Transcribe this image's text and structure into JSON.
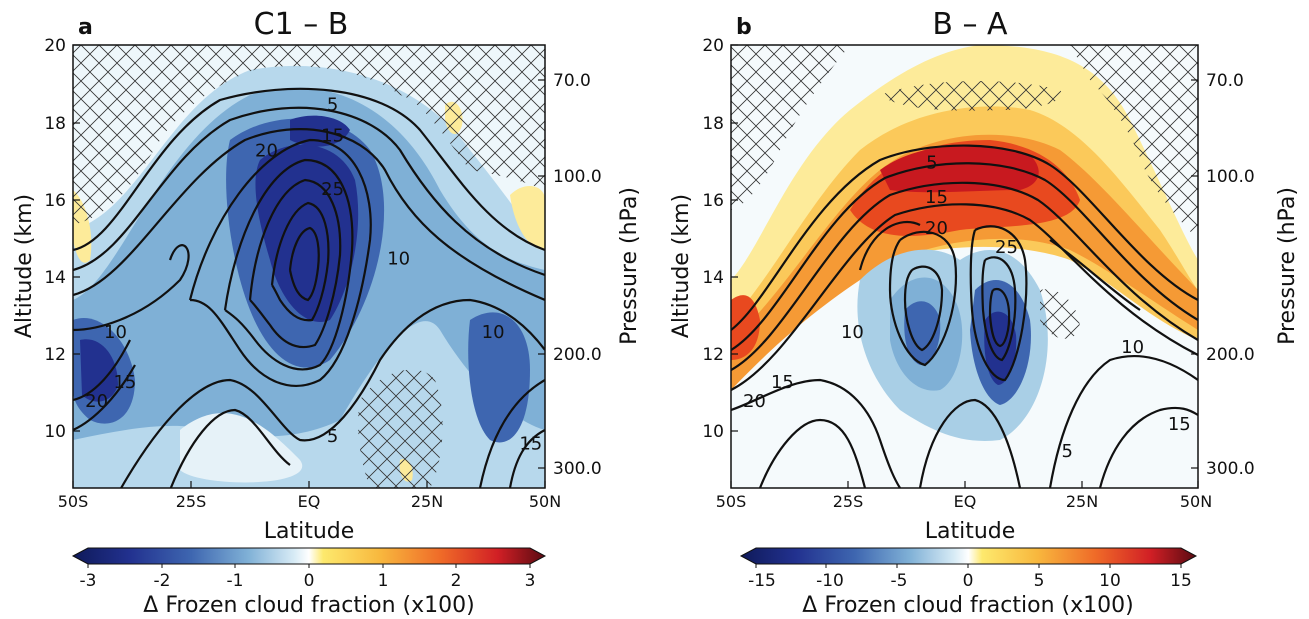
{
  "chart_data": [
    {
      "panel_letter": "a",
      "title": "C1 – B",
      "type": "heatmap",
      "xlabel": "Latitude",
      "ylabel": "Altitude (km)",
      "y2label": "Pressure (hPa)",
      "x_ticks": [
        "50S",
        "25S",
        "EQ",
        "25N",
        "50N"
      ],
      "x_range": [
        -50,
        50
      ],
      "y_ticks": [
        "10",
        "12",
        "14",
        "16",
        "18",
        "20"
      ],
      "y_range": [
        8.5,
        20
      ],
      "y2_ticks": [
        "70.0",
        "100.0",
        "200.0",
        "300.0"
      ],
      "y2_tick_altitudes_km": [
        18.6,
        16.6,
        12.3,
        9.1
      ],
      "colorbar": {
        "label": "Δ Frozen cloud fraction (x100)",
        "ticks": [
          "-3",
          "-2",
          "-1",
          "0",
          "1",
          "2",
          "3"
        ],
        "range": [
          -3,
          3
        ]
      },
      "contour_labels": [
        {
          "text": "5",
          "lat": 5,
          "alt": 18.3
        },
        {
          "text": "15",
          "lat": 5,
          "alt": 17.5
        },
        {
          "text": "20",
          "lat": -9,
          "alt": 17.1
        },
        {
          "text": "25",
          "lat": 5,
          "alt": 16.1
        },
        {
          "text": "10",
          "lat": 19,
          "alt": 14.3
        },
        {
          "text": "10",
          "lat": -41,
          "alt": 12.4
        },
        {
          "text": "10",
          "lat": 39,
          "alt": 12.4
        },
        {
          "text": "15",
          "lat": -39,
          "alt": 11.1
        },
        {
          "text": "20",
          "lat": -45,
          "alt": 10.6
        },
        {
          "text": "5",
          "lat": 5,
          "alt": 9.7
        },
        {
          "text": "15",
          "lat": 47,
          "alt": 9.5
        }
      ],
      "hatched_regions": [
        "upper stratosphere region above ~16-18 km",
        "region near 18-25N below 12 km"
      ]
    },
    {
      "panel_letter": "b",
      "title": "B – A",
      "type": "heatmap",
      "xlabel": "Latitude",
      "ylabel": "Altitude (km)",
      "y2label": "Pressure (hPa)",
      "x_ticks": [
        "50S",
        "25S",
        "EQ",
        "25N",
        "50N"
      ],
      "x_range": [
        -50,
        50
      ],
      "y_ticks": [
        "10",
        "12",
        "14",
        "16",
        "18",
        "20"
      ],
      "y_range": [
        8.5,
        20
      ],
      "y2_ticks": [
        "70.0",
        "100.0",
        "200.0",
        "300.0"
      ],
      "y2_tick_altitudes_km": [
        18.6,
        16.6,
        12.3,
        9.1
      ],
      "colorbar": {
        "label": "Δ Frozen cloud fraction (x100)",
        "ticks": [
          "-15",
          "-10",
          "-5",
          "0",
          "5",
          "10",
          "15"
        ],
        "range": [
          -15,
          15
        ]
      },
      "contour_labels": [
        {
          "text": "5",
          "lat": -7,
          "alt": 16.8
        },
        {
          "text": "15",
          "lat": -6,
          "alt": 15.9
        },
        {
          "text": "20",
          "lat": -6,
          "alt": 15.1
        },
        {
          "text": "25",
          "lat": 9,
          "alt": 14.6
        },
        {
          "text": "10",
          "lat": -24,
          "alt": 12.4
        },
        {
          "text": "10",
          "lat": 36,
          "alt": 12.0
        },
        {
          "text": "15",
          "lat": -39,
          "alt": 11.1
        },
        {
          "text": "20",
          "lat": -45,
          "alt": 10.6
        },
        {
          "text": "15",
          "lat": 46,
          "alt": 10.0
        },
        {
          "text": "5",
          "lat": 22,
          "alt": 9.3
        }
      ],
      "hatched_regions": [
        "stratosphere region above ~15-17 km",
        "small region near 20-30N, 11-13 km"
      ]
    }
  ],
  "colors": {
    "deep_blue": "#1b2a80",
    "mid_blue": "#3f6fb5",
    "light_blue": "#a9cfe6",
    "pale_blue": "#e2f0f8",
    "pale_yellow": "#fdeb9a",
    "orange": "#f5a23a",
    "red": "#d7261f",
    "dark_red": "#7e1016",
    "contour": "#111111"
  }
}
